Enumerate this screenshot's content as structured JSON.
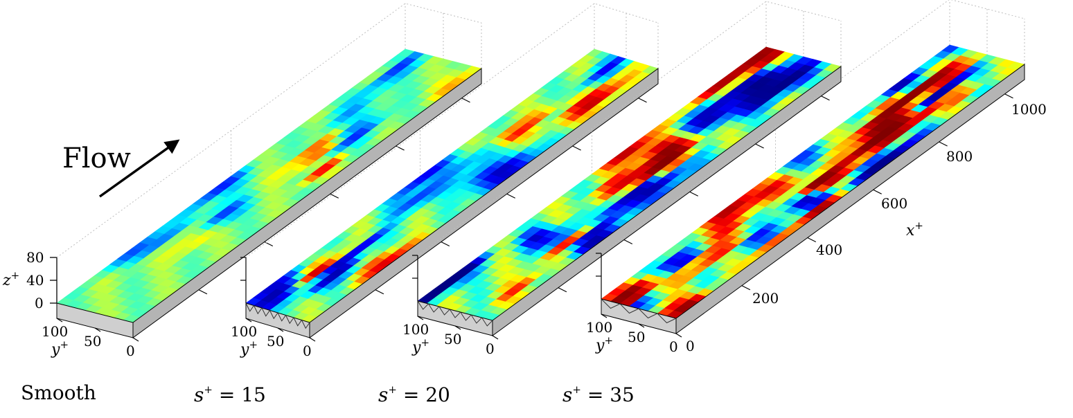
{
  "flow_label": "Flow",
  "vertical_axis": {
    "var": "z",
    "sup": "+",
    "ticks": [
      "80",
      "40",
      "0"
    ]
  },
  "spanwise_axis": {
    "var": "y",
    "sup": "+",
    "ticks": [
      "100",
      "50",
      "0"
    ]
  },
  "streamwise_axis": {
    "var": "x",
    "sup": "+",
    "ticks": [
      "0",
      "200",
      "400",
      "600",
      "800",
      "1000"
    ]
  },
  "panels": [
    {
      "case_text": "Smooth",
      "case_var": "",
      "case_eq": "",
      "intensity": 0.25,
      "riblets": 0,
      "seed": 3
    },
    {
      "case_text": "",
      "case_var": "s",
      "case_eq": " = 15",
      "intensity": 0.5,
      "riblets": 8,
      "seed": 7
    },
    {
      "case_text": "",
      "case_var": "s",
      "case_eq": " = 20",
      "intensity": 0.75,
      "riblets": 7,
      "seed": 11
    },
    {
      "case_text": "",
      "case_var": "s",
      "case_eq": " = 35",
      "intensity": 1.0,
      "riblets": 4,
      "seed": 19
    }
  ],
  "colors": {
    "wall_side": "#b4b4b4",
    "wall_front": "#cfcfcf",
    "field_mid": "#3ee8a8"
  }
}
